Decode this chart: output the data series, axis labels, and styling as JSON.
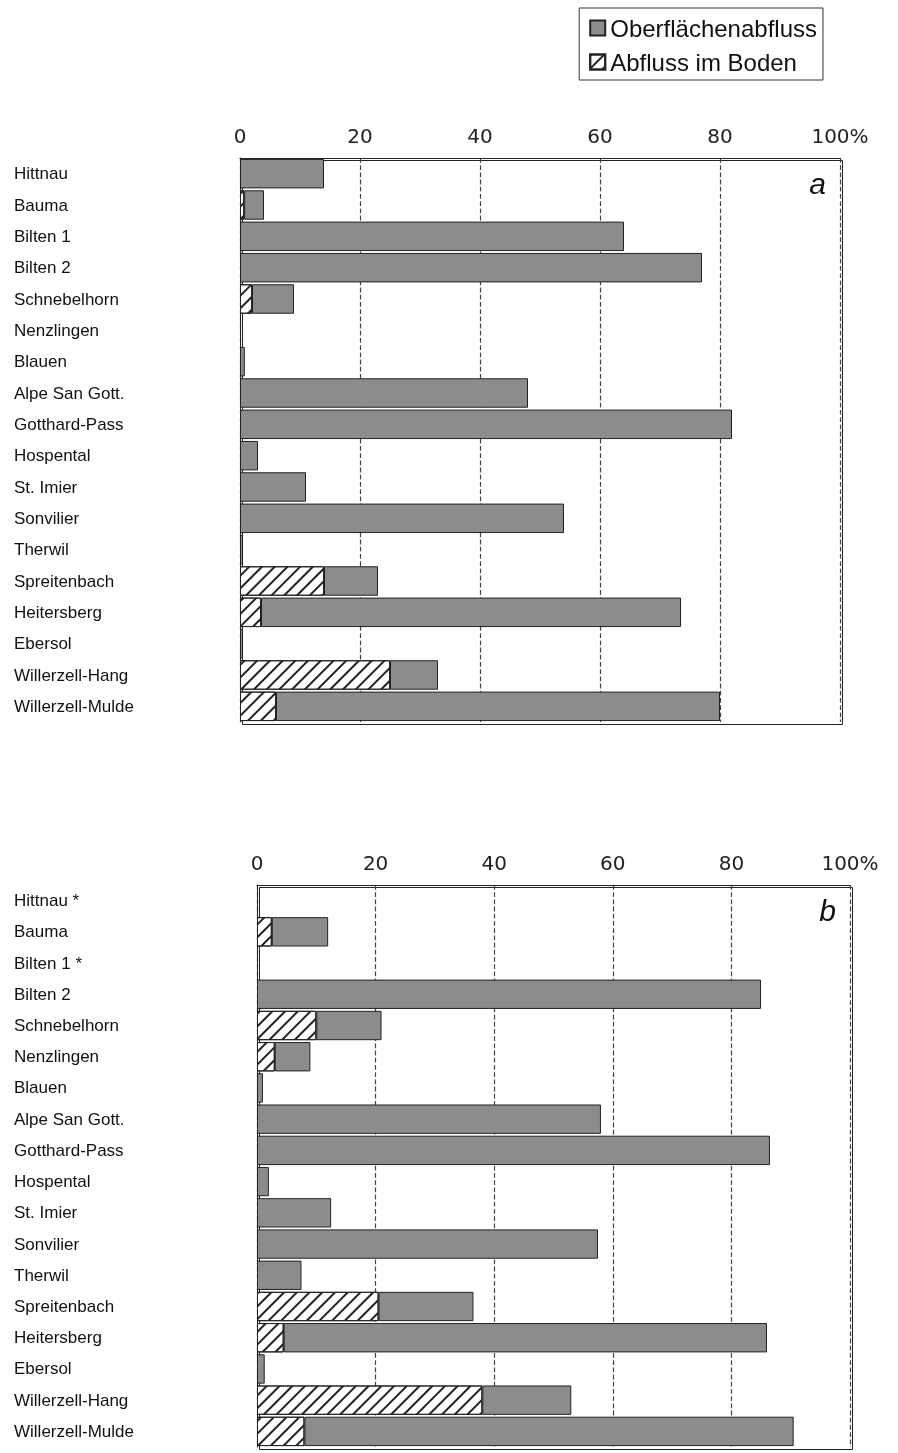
{
  "chart_data": [
    {
      "type": "bar",
      "orientation": "horizontal",
      "stacked": true,
      "legend": "top right",
      "grid": "x",
      "annotations": [
        "a"
      ],
      "categories": [
        "Hittnau",
        "Bauma",
        "Bilten 1",
        "Bilten 2",
        "Schnebelhorn",
        "Nenzlingen",
        "Blauen",
        "Alpe San Gott.",
        "Gotthard-Pass",
        "Hospental",
        "St. Imier",
        "Sonvilier",
        "Therwil",
        "Spreitenbach",
        "Heitersberg",
        "Ebersol",
        "Willerzell-Hang",
        "Willerzell-Mulde"
      ],
      "xlim": [
        0,
        100
      ],
      "xticks": [
        0,
        20,
        40,
        60,
        80,
        {
          "value": 100,
          "label": "100%"
        }
      ],
      "series": [
        {
          "name": "Abfluss im Boden",
          "color": "#ffffff",
          "values": [
            0,
            0.7,
            0,
            0,
            2,
            0,
            0,
            0,
            0,
            0,
            0,
            0,
            0,
            14,
            3.5,
            0,
            25,
            6
          ]
        },
        {
          "name": "Oberflächenabfluss",
          "color": "#8c8c8c",
          "values": [
            14,
            3.3,
            64,
            77,
            7,
            0,
            0.8,
            48,
            82,
            3,
            11,
            54,
            0.5,
            9,
            70,
            0.5,
            8,
            74
          ]
        }
      ]
    },
    {
      "type": "bar",
      "orientation": "horizontal",
      "stacked": true,
      "grid": "x",
      "annotations": [
        "b"
      ],
      "categories": [
        "Hittnau *",
        "Bauma",
        "Bilten 1 *",
        "Bilten 2",
        "Schnebelhorn",
        "Nenzlingen",
        "Blauen",
        "Alpe San Gott.",
        "Gotthard-Pass",
        "Hospental",
        "St. Imier",
        "Sonvilier",
        "Therwil",
        "Spreitenbach",
        "Heitersberg",
        "Ebersol",
        "Willerzell-Hang",
        "Willerzell-Mulde"
      ],
      "xlim": [
        0,
        100
      ],
      "xticks": [
        0,
        20,
        40,
        60,
        80,
        {
          "value": 100,
          "label": "100%"
        }
      ],
      "series": [
        {
          "color": "#ffffff",
          "values": [
            null,
            2.5,
            null,
            0,
            10,
            3,
            0,
            0,
            0,
            0,
            0,
            0,
            0,
            20.5,
            4.5,
            0,
            38,
            8
          ]
        },
        {
          "color": "#8c8c8c",
          "values": [
            null,
            9.5,
            null,
            85,
            11,
            6,
            1,
            58,
            86.5,
            2,
            12.5,
            57.5,
            7.5,
            16,
            81.5,
            1.3,
            15,
            82.5
          ]
        }
      ]
    }
  ]
}
